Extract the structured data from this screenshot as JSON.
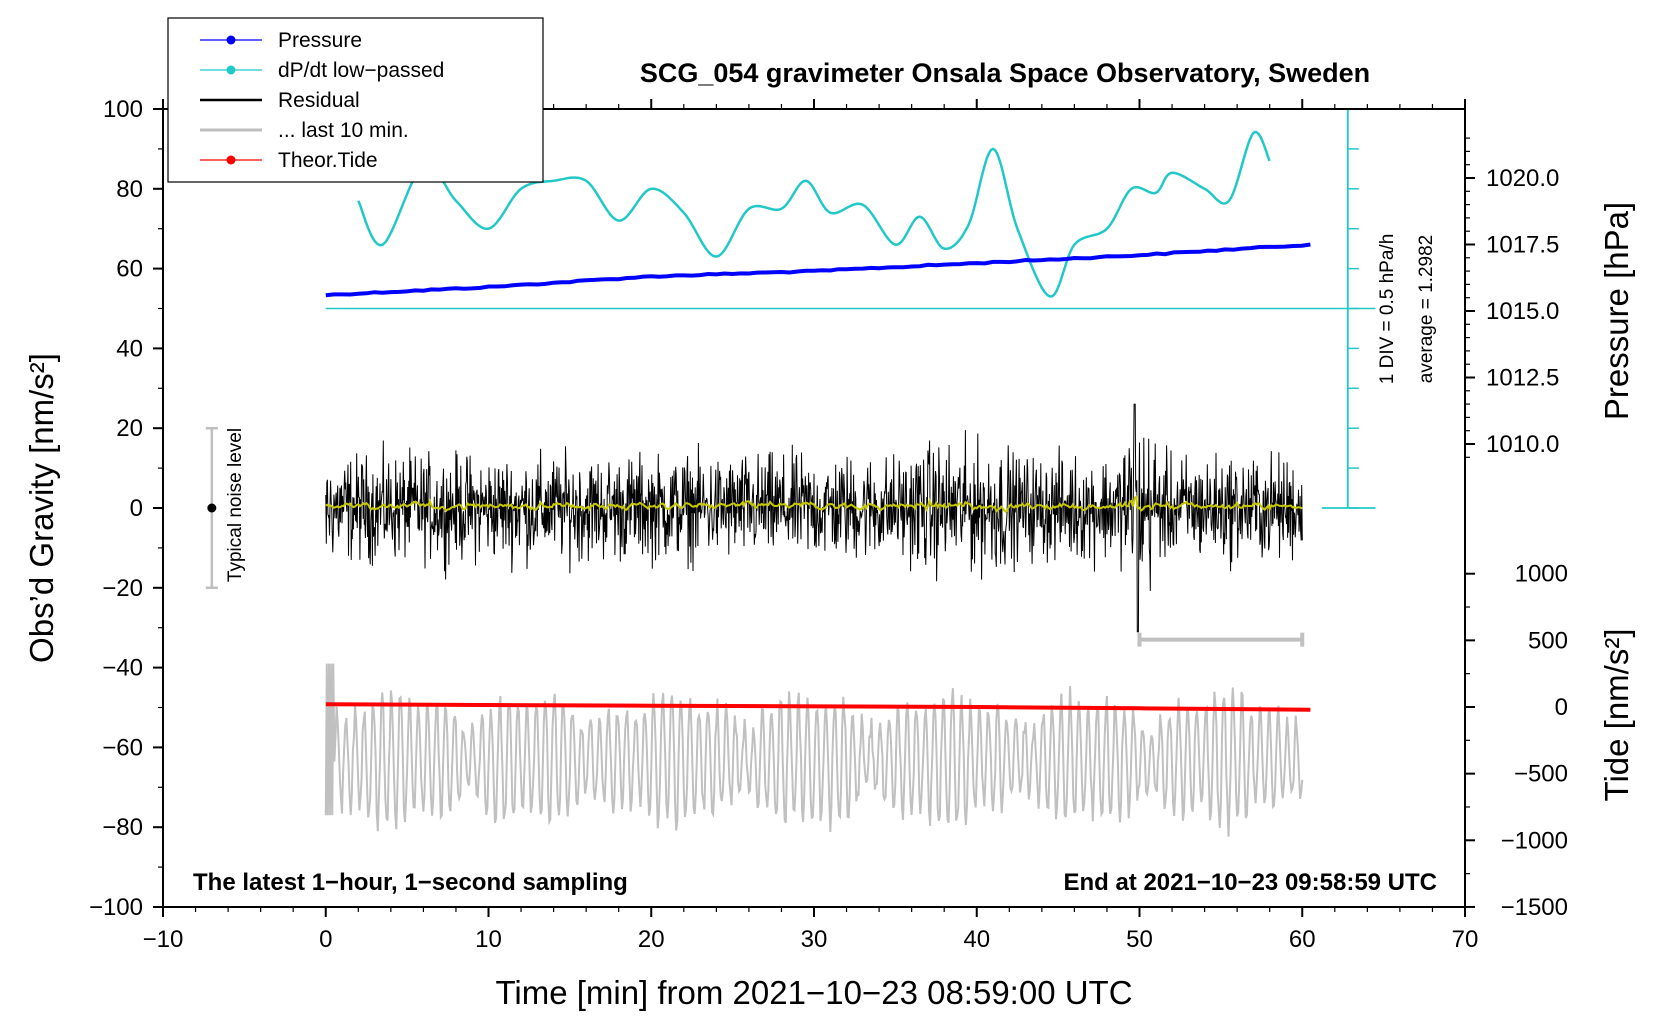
{
  "chart_data": {
    "type": "line",
    "title": "SCG_054 gravimeter Onsala Space Observatory, Sweden",
    "xlabel": "Time [min] from 2021−10−23 08:59:00 UTC",
    "ylabel_left": "Obs’d Gravity [nm/s²]",
    "ylabel_right_top": "Pressure [hPa]",
    "ylabel_right_bottom": "Tide [nm/s²]",
    "xlim": [
      -10,
      70
    ],
    "ylim": [
      -100,
      100
    ],
    "x_ticks": [
      "−10",
      "0",
      "10",
      "20",
      "30",
      "40",
      "50",
      "60",
      "70"
    ],
    "y_ticks": [
      "100",
      "80",
      "60",
      "40",
      "20",
      "0",
      "−20",
      "−40",
      "−60",
      "−80",
      "−100"
    ],
    "pressure_ticks": [
      "1020.0",
      "1017.5",
      "1015.0",
      "1012.5",
      "1010.0"
    ],
    "tide_ticks": [
      "1000",
      "500",
      "0",
      "−500",
      "−1000",
      "−1500"
    ],
    "legend": [
      {
        "label": "Pressure",
        "color": "#0000ff",
        "marker": true
      },
      {
        "label": "dP/dt low−passed",
        "color": "#22c8c8",
        "marker": true
      },
      {
        "label": "Residual",
        "color": "#000000",
        "marker": false
      },
      {
        "label": "... last 10 min.",
        "color": "#bfbfbf",
        "marker": false
      },
      {
        "label": "Theor.Tide",
        "color": "#ff0000",
        "marker": true
      }
    ],
    "noise_label": "Typical noise level",
    "noise_range": [
      -20,
      20
    ],
    "scale_label": "1 DIV = 0.5 hPa/h",
    "average_label": "average = 1.2982",
    "note_left": "The latest 1−hour, 1−second sampling",
    "note_right": "End at 2021−10−23 09:58:59 UTC",
    "series": [
      {
        "name": "Pressure",
        "unit": "hPa",
        "x": [
          0,
          10,
          20,
          30,
          40,
          50,
          60.5
        ],
        "values": [
          1015.6,
          1015.9,
          1016.3,
          1016.5,
          1016.8,
          1017.1,
          1017.5
        ]
      },
      {
        "name": "dP/dt low-passed",
        "unit": "gravity-axis units",
        "x": [
          2,
          3.5,
          6,
          8,
          10,
          12,
          14,
          16,
          18,
          20,
          22,
          24,
          26,
          28,
          29.5,
          31,
          33,
          35,
          36.5,
          38,
          39.5,
          41,
          42.5,
          44.5,
          46,
          48,
          49.5,
          51,
          52,
          54,
          55.5,
          57,
          58
        ],
        "values": [
          77,
          66,
          86,
          77,
          70,
          80,
          82,
          82,
          72,
          80,
          74,
          63,
          75,
          75,
          82,
          74,
          76,
          66,
          73,
          65,
          71,
          90,
          70,
          53,
          66,
          70,
          80,
          79,
          84,
          80,
          77,
          94,
          87
        ]
      },
      {
        "name": "Residual",
        "unit": "nm/s²",
        "x_range": [
          0,
          60
        ],
        "mean": 0,
        "range": [
          -31,
          26
        ]
      },
      {
        "name": "... last 10 min.",
        "x": [
          50,
          60
        ],
        "values": [
          -33,
          -33
        ]
      },
      {
        "name": "Theor.Tide",
        "unit": "nm/s²",
        "x": [
          0,
          20,
          40,
          50,
          60.5
        ],
        "values": [
          20,
          10,
          0,
          -10,
          -20
        ]
      },
      {
        "name": "Tide detail (grey)",
        "unit": "gravity-axis units",
        "x_range": [
          0,
          60
        ],
        "baseline": -63,
        "range": [
          -85,
          -36
        ]
      }
    ]
  }
}
